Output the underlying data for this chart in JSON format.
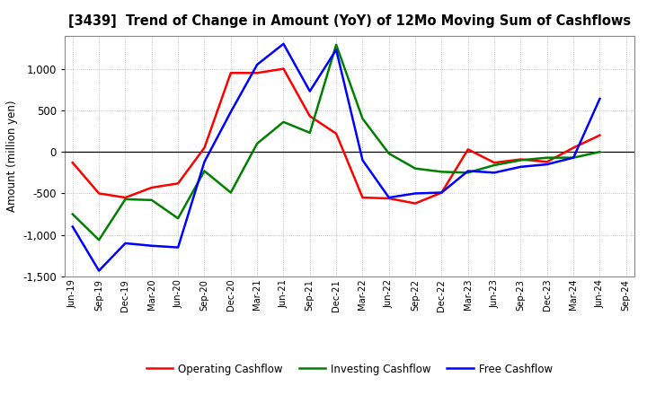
{
  "title": "[3439]  Trend of Change in Amount (YoY) of 12Mo Moving Sum of Cashflows",
  "ylabel": "Amount (million yen)",
  "x_labels": [
    "Jun-19",
    "Sep-19",
    "Dec-19",
    "Mar-20",
    "Jun-20",
    "Sep-20",
    "Dec-20",
    "Mar-21",
    "Jun-21",
    "Sep-21",
    "Dec-21",
    "Mar-22",
    "Jun-22",
    "Sep-22",
    "Dec-22",
    "Mar-23",
    "Jun-23",
    "Sep-23",
    "Dec-23",
    "Mar-24",
    "Jun-24",
    "Sep-24"
  ],
  "operating": [
    -130,
    -500,
    -550,
    -430,
    -380,
    50,
    950,
    950,
    1000,
    430,
    220,
    -550,
    -560,
    -620,
    -490,
    30,
    -130,
    -90,
    -120,
    50,
    200,
    null
  ],
  "investing": [
    -750,
    -1060,
    -570,
    -580,
    -800,
    -230,
    -490,
    100,
    360,
    230,
    1290,
    400,
    -20,
    -200,
    -240,
    -250,
    -160,
    -100,
    -70,
    -70,
    0,
    null
  ],
  "free": [
    -900,
    -1430,
    -1100,
    -1130,
    -1150,
    -120,
    480,
    1050,
    1300,
    730,
    1230,
    -100,
    -550,
    -500,
    -490,
    -230,
    -250,
    -180,
    -150,
    -70,
    640,
    null
  ],
  "ylim": [
    -1500,
    1400
  ],
  "yticks": [
    -1500,
    -1000,
    -500,
    0,
    500,
    1000
  ],
  "colors": {
    "operating": "#ff0000",
    "investing": "#008000",
    "free": "#0000ff"
  },
  "legend_labels": [
    "Operating Cashflow",
    "Investing Cashflow",
    "Free Cashflow"
  ],
  "background_color": "#ffffff",
  "grid_color": "#b0b0b0"
}
